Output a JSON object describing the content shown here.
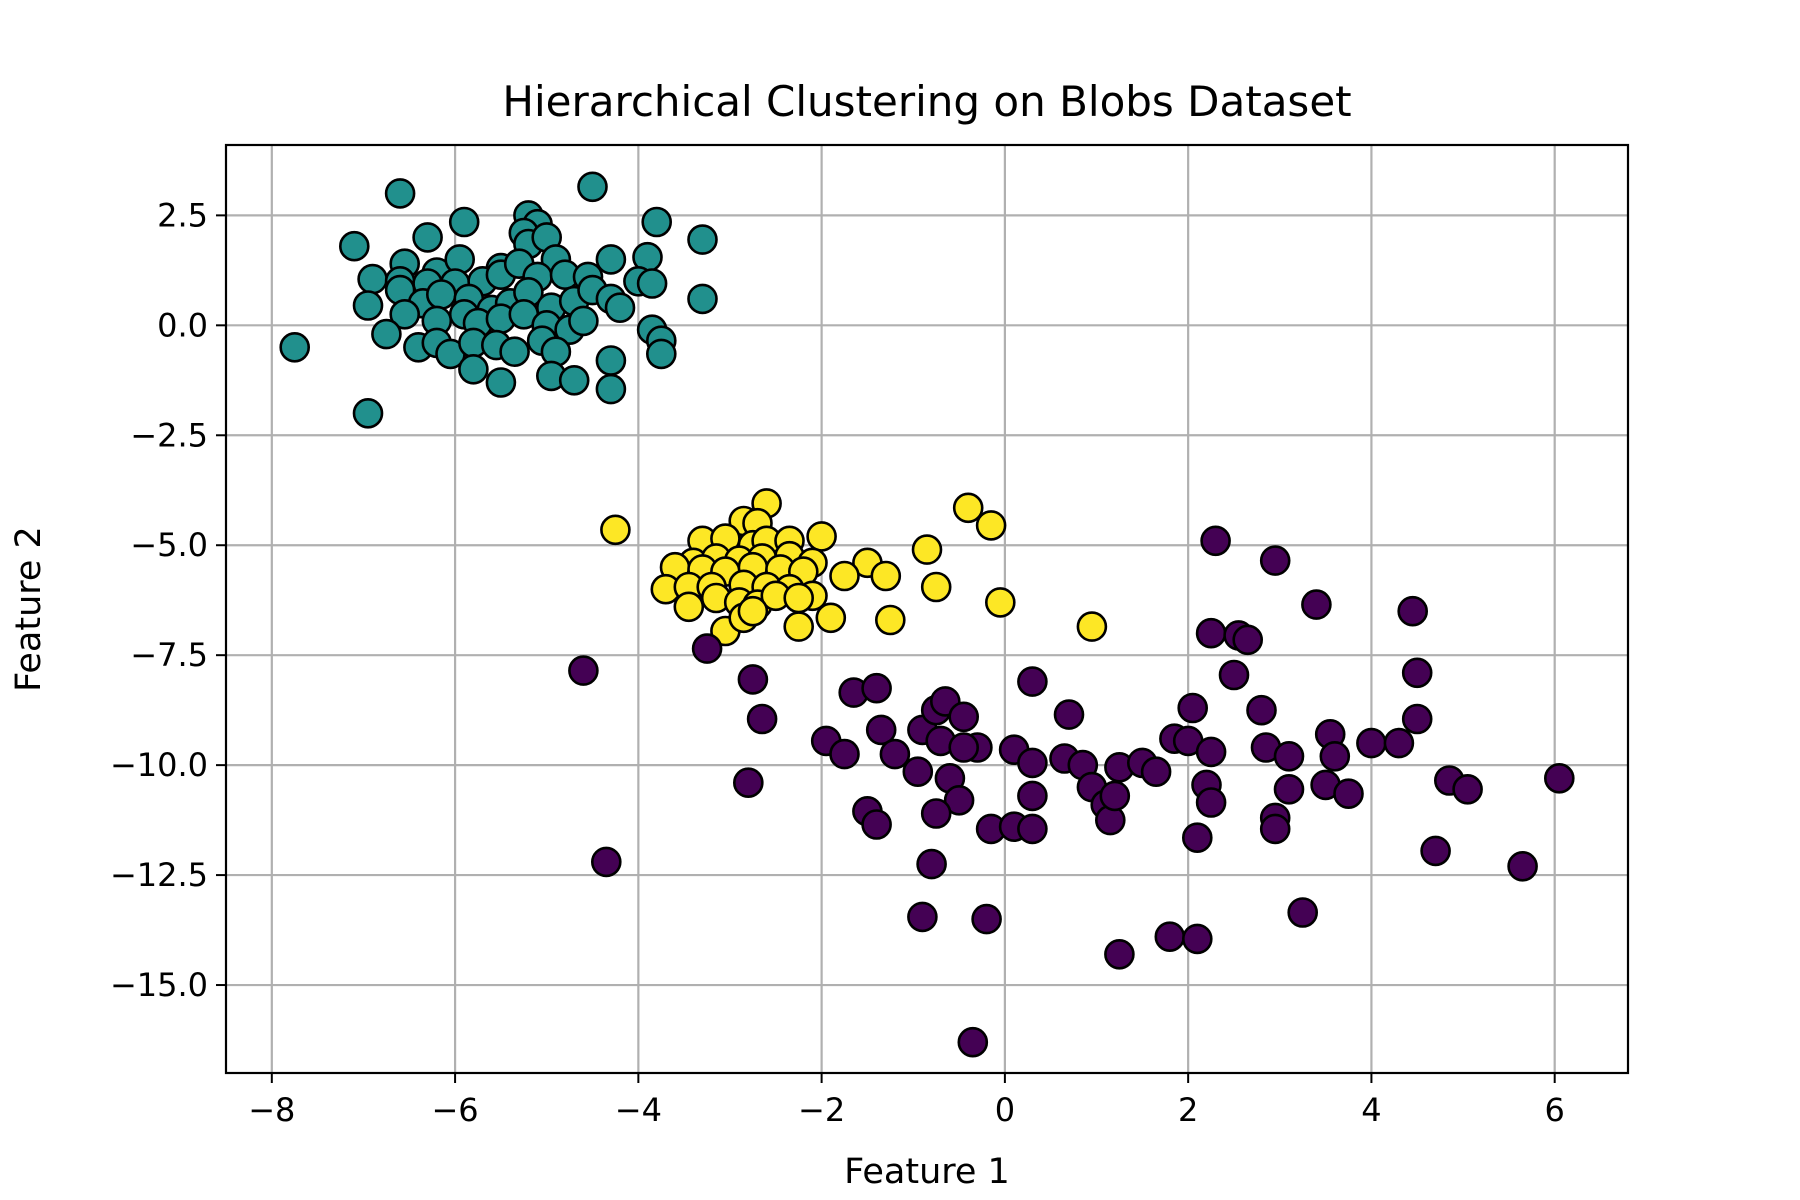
{
  "chart_data": {
    "type": "scatter",
    "title": "Hierarchical Clustering on Blobs Dataset",
    "xlabel": "Feature 1",
    "ylabel": "Feature 2",
    "xlim": [
      -8.5,
      6.8
    ],
    "ylim": [
      -17.0,
      4.1
    ],
    "xticks": [
      -8,
      -6,
      -4,
      -2,
      0,
      2,
      4,
      6
    ],
    "xtick_labels": [
      "−8",
      "−6",
      "−4",
      "−2",
      "0",
      "2",
      "4",
      "6"
    ],
    "yticks": [
      2.5,
      0.0,
      -2.5,
      -5.0,
      -7.5,
      -10.0,
      -12.5,
      -15.0
    ],
    "ytick_labels": [
      "2.5",
      "0.0",
      "−2.5",
      "−5.0",
      "−7.5",
      "−10.0",
      "−12.5",
      "−15.0"
    ],
    "grid": true,
    "marker_edge_color": "#000000",
    "series": [
      {
        "color": "#21908d",
        "points": [
          [
            -6.6,
            3.0
          ],
          [
            -4.5,
            3.15
          ],
          [
            -7.1,
            1.8
          ],
          [
            -6.3,
            2.0
          ],
          [
            -5.9,
            2.35
          ],
          [
            -5.2,
            2.5
          ],
          [
            -5.1,
            2.3
          ],
          [
            -3.8,
            2.35
          ],
          [
            -3.3,
            1.95
          ],
          [
            -6.55,
            1.4
          ],
          [
            -6.2,
            1.2
          ],
          [
            -5.95,
            1.5
          ],
          [
            -5.5,
            1.3
          ],
          [
            -5.25,
            2.1
          ],
          [
            -5.2,
            1.85
          ],
          [
            -5.0,
            2.0
          ],
          [
            -4.9,
            1.5
          ],
          [
            -4.3,
            1.5
          ],
          [
            -3.9,
            1.55
          ],
          [
            -6.9,
            1.05
          ],
          [
            -6.6,
            1.0
          ],
          [
            -6.3,
            0.95
          ],
          [
            -6.0,
            0.95
          ],
          [
            -5.7,
            1.0
          ],
          [
            -5.5,
            1.15
          ],
          [
            -5.3,
            1.4
          ],
          [
            -5.1,
            1.1
          ],
          [
            -4.8,
            1.15
          ],
          [
            -4.55,
            1.1
          ],
          [
            -4.0,
            1.0
          ],
          [
            -3.85,
            0.95
          ],
          [
            -6.95,
            0.45
          ],
          [
            -6.6,
            0.8
          ],
          [
            -6.35,
            0.5
          ],
          [
            -6.15,
            0.7
          ],
          [
            -5.85,
            0.6
          ],
          [
            -5.6,
            0.35
          ],
          [
            -5.4,
            0.5
          ],
          [
            -5.2,
            0.75
          ],
          [
            -4.95,
            0.4
          ],
          [
            -4.7,
            0.55
          ],
          [
            -4.5,
            0.8
          ],
          [
            -4.3,
            0.6
          ],
          [
            -4.2,
            0.4
          ],
          [
            -3.3,
            0.6
          ],
          [
            -6.55,
            0.25
          ],
          [
            -6.2,
            0.1
          ],
          [
            -5.9,
            0.25
          ],
          [
            -5.75,
            0.05
          ],
          [
            -5.5,
            0.15
          ],
          [
            -5.25,
            0.25
          ],
          [
            -5.0,
            0.0
          ],
          [
            -4.75,
            -0.1
          ],
          [
            -4.6,
            0.1
          ],
          [
            -7.75,
            -0.5
          ],
          [
            -6.75,
            -0.2
          ],
          [
            -6.4,
            -0.5
          ],
          [
            -6.2,
            -0.4
          ],
          [
            -6.05,
            -0.65
          ],
          [
            -5.8,
            -0.4
          ],
          [
            -5.55,
            -0.45
          ],
          [
            -5.35,
            -0.6
          ],
          [
            -5.05,
            -0.35
          ],
          [
            -4.9,
            -0.6
          ],
          [
            -3.85,
            -0.1
          ],
          [
            -3.75,
            -0.35
          ],
          [
            -3.75,
            -0.65
          ],
          [
            -4.3,
            -0.8
          ],
          [
            -5.8,
            -1.0
          ],
          [
            -5.5,
            -1.3
          ],
          [
            -4.95,
            -1.15
          ],
          [
            -4.7,
            -1.25
          ],
          [
            -4.3,
            -1.45
          ],
          [
            -6.95,
            -2.0
          ]
        ]
      },
      {
        "color": "#fde725",
        "points": [
          [
            -2.6,
            -4.05
          ],
          [
            -0.4,
            -4.15
          ],
          [
            -0.15,
            -4.55
          ],
          [
            -4.25,
            -4.65
          ],
          [
            -2.85,
            -4.45
          ],
          [
            -2.7,
            -4.5
          ],
          [
            -3.3,
            -4.9
          ],
          [
            -3.05,
            -4.85
          ],
          [
            -2.75,
            -5.0
          ],
          [
            -2.6,
            -4.9
          ],
          [
            -2.35,
            -4.9
          ],
          [
            -2.0,
            -4.8
          ],
          [
            -0.85,
            -5.1
          ],
          [
            -3.4,
            -5.4
          ],
          [
            -3.15,
            -5.3
          ],
          [
            -2.9,
            -5.35
          ],
          [
            -2.65,
            -5.3
          ],
          [
            -2.35,
            -5.25
          ],
          [
            -2.1,
            -5.4
          ],
          [
            -1.5,
            -5.4
          ],
          [
            -3.6,
            -5.5
          ],
          [
            -3.3,
            -5.55
          ],
          [
            -3.05,
            -5.6
          ],
          [
            -2.75,
            -5.5
          ],
          [
            -2.45,
            -5.55
          ],
          [
            -2.2,
            -5.6
          ],
          [
            -1.75,
            -5.7
          ],
          [
            -1.3,
            -5.7
          ],
          [
            -3.7,
            -6.0
          ],
          [
            -3.45,
            -5.95
          ],
          [
            -3.2,
            -5.95
          ],
          [
            -2.85,
            -5.9
          ],
          [
            -2.6,
            -5.95
          ],
          [
            -2.35,
            -6.0
          ],
          [
            -2.1,
            -6.15
          ],
          [
            -0.75,
            -5.95
          ],
          [
            -3.45,
            -6.4
          ],
          [
            -3.15,
            -6.2
          ],
          [
            -2.9,
            -6.3
          ],
          [
            -2.7,
            -6.35
          ],
          [
            -2.5,
            -6.15
          ],
          [
            -2.25,
            -6.2
          ],
          [
            -0.05,
            -6.3
          ],
          [
            -3.05,
            -6.95
          ],
          [
            -2.85,
            -6.65
          ],
          [
            -2.75,
            -6.5
          ],
          [
            -2.25,
            -6.85
          ],
          [
            -1.9,
            -6.65
          ],
          [
            -1.25,
            -6.7
          ],
          [
            0.95,
            -6.85
          ]
        ]
      },
      {
        "color": "#440154",
        "points": [
          [
            -3.25,
            -7.35
          ],
          [
            -4.6,
            -7.85
          ],
          [
            -2.75,
            -8.05
          ],
          [
            -2.65,
            -8.95
          ],
          [
            -1.65,
            -8.35
          ],
          [
            -1.4,
            -8.25
          ],
          [
            -1.35,
            -9.2
          ],
          [
            -0.9,
            -9.2
          ],
          [
            -0.75,
            -8.75
          ],
          [
            -0.65,
            -8.55
          ],
          [
            -0.45,
            -8.9
          ],
          [
            -0.7,
            -9.45
          ],
          [
            -0.3,
            -9.6
          ],
          [
            -1.95,
            -9.45
          ],
          [
            -1.75,
            -9.75
          ],
          [
            -1.2,
            -9.75
          ],
          [
            -0.95,
            -10.15
          ],
          [
            -0.6,
            -10.3
          ],
          [
            -0.5,
            -10.8
          ],
          [
            -0.45,
            -9.6
          ],
          [
            -2.8,
            -10.4
          ],
          [
            -1.5,
            -11.05
          ],
          [
            -1.4,
            -11.35
          ],
          [
            -0.75,
            -11.1
          ],
          [
            -0.8,
            -12.25
          ],
          [
            -0.15,
            -11.45
          ],
          [
            0.1,
            -11.4
          ],
          [
            0.3,
            -11.45
          ],
          [
            0.3,
            -10.7
          ],
          [
            0.1,
            -9.65
          ],
          [
            0.3,
            -9.95
          ],
          [
            0.3,
            -8.1
          ],
          [
            0.7,
            -8.85
          ],
          [
            0.65,
            -9.85
          ],
          [
            0.85,
            -10.0
          ],
          [
            0.95,
            -10.5
          ],
          [
            1.1,
            -10.9
          ],
          [
            1.15,
            -11.25
          ],
          [
            1.25,
            -10.05
          ],
          [
            1.5,
            -9.95
          ],
          [
            1.65,
            -10.15
          ],
          [
            1.2,
            -10.7
          ],
          [
            1.85,
            -9.4
          ],
          [
            2.0,
            -9.45
          ],
          [
            2.05,
            -8.7
          ],
          [
            2.25,
            -9.7
          ],
          [
            2.1,
            -11.65
          ],
          [
            2.2,
            -10.45
          ],
          [
            2.25,
            -10.85
          ],
          [
            2.25,
            -7.0
          ],
          [
            2.3,
            -4.9
          ],
          [
            2.55,
            -7.05
          ],
          [
            2.65,
            -7.15
          ],
          [
            2.5,
            -7.95
          ],
          [
            2.8,
            -8.75
          ],
          [
            2.85,
            -9.6
          ],
          [
            2.95,
            -11.2
          ],
          [
            2.95,
            -11.45
          ],
          [
            2.95,
            -5.35
          ],
          [
            3.1,
            -9.8
          ],
          [
            3.1,
            -10.55
          ],
          [
            3.4,
            -6.35
          ],
          [
            3.5,
            -10.45
          ],
          [
            3.55,
            -9.3
          ],
          [
            3.6,
            -9.8
          ],
          [
            3.75,
            -10.65
          ],
          [
            4.0,
            -9.5
          ],
          [
            4.3,
            -9.5
          ],
          [
            4.45,
            -6.5
          ],
          [
            4.5,
            -7.9
          ],
          [
            4.5,
            -8.95
          ],
          [
            4.7,
            -11.95
          ],
          [
            4.85,
            -10.35
          ],
          [
            5.05,
            -10.55
          ],
          [
            5.65,
            -12.3
          ],
          [
            6.05,
            -10.3
          ],
          [
            -4.35,
            -12.2
          ],
          [
            -0.9,
            -13.45
          ],
          [
            -0.2,
            -13.5
          ],
          [
            1.25,
            -14.3
          ],
          [
            1.8,
            -13.9
          ],
          [
            2.1,
            -13.95
          ],
          [
            3.25,
            -13.35
          ],
          [
            -0.35,
            -16.3
          ]
        ]
      }
    ]
  }
}
